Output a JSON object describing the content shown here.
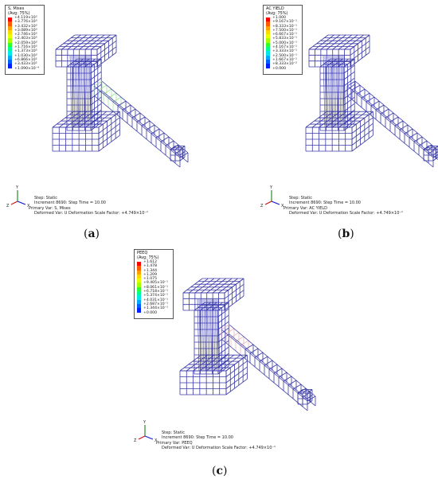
{
  "panels": [
    {
      "id": "a",
      "caption_letter": "a",
      "legend": {
        "title": "S, Mises",
        "avg": "(Avg: 75%)",
        "values": [
          "+4.119×10³",
          "+3.776×10³",
          "+3.432×10³",
          "+3.089×10³",
          "+2.746×10³",
          "+2.403×10³",
          "+2.059×10³",
          "+1.716×10³",
          "+1.373×10³",
          "+1.030×10³",
          "+6.866×10²",
          "+3.433×10²",
          "+1.090×10⁻⁴"
        ]
      },
      "info": {
        "step": "Step: Static",
        "increment": "Increment    8690: Step Time =     10.00",
        "primary": "Primary Var: S, Mises",
        "deformed": "Deformed Var: U   Deformation Scale Factor: +4.749×10⁻¹"
      },
      "highlight_color": "#9fe3a0"
    },
    {
      "id": "b",
      "caption_letter": "b",
      "legend": {
        "title": "AC YIELD",
        "avg": "(Avg: 75%)",
        "values": [
          "+1.000",
          "+9.167×10⁻¹",
          "+8.333×10⁻¹",
          "+7.500×10⁻¹",
          "+6.667×10⁻¹",
          "+5.833×10⁻¹",
          "+5.000×10⁻¹",
          "+4.167×10⁻¹",
          "+3.333×10⁻¹",
          "+2.500×10⁻¹",
          "+1.667×10⁻¹",
          "+8.333×10⁻²",
          "+0.000"
        ]
      },
      "info": {
        "step": "Step: Static",
        "increment": "Increment    8690: Step Time =     10.00",
        "primary": "Primary Var: AC YIELD",
        "deformed": "Deformed Var: U   Deformation Scale Factor: +4.749×10⁻¹"
      },
      "highlight_color": "#3a3acc"
    },
    {
      "id": "c",
      "caption_letter": "c",
      "legend": {
        "title": "PEEQ",
        "avg": "(Avg: 75%)",
        "values": [
          "+1.612",
          "+1.478",
          "+1.344",
          "+1.209",
          "+1.075",
          "+9.405×10⁻¹",
          "+8.061×10⁻¹",
          "+6.718×10⁻¹",
          "+5.374×10⁻¹",
          "+4.031×10⁻¹",
          "+2.687×10⁻¹",
          "+1.344×10⁻¹",
          "+0.000"
        ]
      },
      "info": {
        "step": "Step: Static",
        "increment": "Increment    8690: Step Time =     10.00",
        "primary": "Primary Var: PEEQ",
        "deformed": "Deformed Var: U   Deformation Scale Factor: +4.749×10⁻¹"
      },
      "highlight_color": "#e8b8b8"
    }
  ],
  "triad": {
    "x": "X",
    "y": "Y",
    "z": "Z"
  },
  "colors": {
    "contour": [
      "#ff0000",
      "#ff5a00",
      "#ffa000",
      "#ffd800",
      "#e8ff00",
      "#a8ff00",
      "#30ff30",
      "#00ff90",
      "#00e8e8",
      "#00a8ff",
      "#0060ff",
      "#0020ff",
      "#0000c8"
    ],
    "mesh": "#3a3aa8"
  }
}
